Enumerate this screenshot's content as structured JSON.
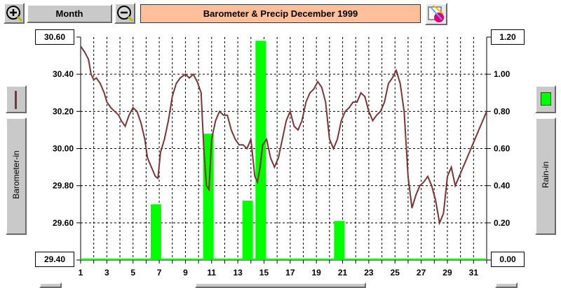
{
  "toolbar": {
    "zoom_in_label": "+",
    "zoom_out_label": "−",
    "period_label": "Month",
    "title": "Barometer & Precip   December 1999"
  },
  "left_panel": {
    "label": "Barometer-in",
    "swatch_color": "#7b3535"
  },
  "right_panel": {
    "label": "Rain-in",
    "swatch_color": "#00ff00"
  },
  "chart_data": {
    "type": "line",
    "title": "Barometer & Precip   December 1999",
    "x_ticks": [
      "1",
      "3",
      "5",
      "7",
      "9",
      "11",
      "13",
      "15",
      "17",
      "19",
      "21",
      "23",
      "25",
      "27",
      "29",
      "31"
    ],
    "xlim": [
      1,
      32
    ],
    "y_left": {
      "label": "Barometer-in",
      "ticks": [
        "30.60",
        "30.40",
        "30.20",
        "30.00",
        "29.80",
        "29.60",
        "29.40"
      ],
      "ylim": [
        29.4,
        30.6
      ]
    },
    "y_right": {
      "label": "Rain-in",
      "ticks": [
        "1.20",
        "1.00",
        "0.80",
        "0.60",
        "0.40",
        "0.20",
        "0.00"
      ],
      "ylim": [
        0,
        1.2
      ]
    },
    "grid": true,
    "series": [
      {
        "kind": "line",
        "axis": "left",
        "color": "#7b3535",
        "x": [
          1.0,
          1.3,
          1.6,
          1.8,
          2.0,
          2.2,
          2.5,
          2.8,
          3.0,
          3.3,
          3.6,
          3.9,
          4.1,
          4.4,
          4.7,
          5.0,
          5.3,
          5.6,
          5.9,
          6.1,
          6.4,
          6.7,
          6.9,
          7.1,
          7.4,
          7.7,
          8.0,
          8.3,
          8.6,
          9.0,
          9.3,
          9.6,
          9.9,
          10.2,
          10.4,
          10.6,
          10.8,
          11.0,
          11.3,
          11.6,
          11.9,
          12.2,
          12.5,
          12.8,
          13.1,
          13.4,
          13.7,
          14.0,
          14.3,
          14.5,
          14.7,
          14.9,
          15.2,
          15.5,
          15.8,
          16.1,
          16.4,
          16.7,
          17.0,
          17.3,
          17.6,
          17.9,
          18.2,
          18.5,
          18.8,
          19.1,
          19.4,
          19.7,
          20.0,
          20.3,
          20.6,
          20.9,
          21.2,
          21.5,
          21.8,
          22.1,
          22.4,
          22.7,
          23.0,
          23.3,
          23.6,
          23.9,
          24.2,
          24.5,
          24.8,
          25.1,
          25.4,
          25.7,
          26.0,
          26.3,
          26.6,
          26.9,
          27.2,
          27.5,
          27.8,
          28.1,
          28.4,
          28.7,
          29.0,
          29.3,
          29.6,
          29.9,
          30.2,
          30.5,
          30.8,
          31.1,
          31.4,
          31.7,
          32.0
        ],
        "y": [
          30.55,
          30.52,
          30.48,
          30.4,
          30.37,
          30.38,
          30.35,
          30.3,
          30.25,
          30.22,
          30.2,
          30.18,
          30.15,
          30.12,
          30.18,
          30.22,
          30.2,
          30.14,
          30.05,
          29.95,
          29.9,
          29.85,
          29.84,
          29.98,
          30.05,
          30.15,
          30.28,
          30.35,
          30.38,
          30.4,
          30.38,
          30.4,
          30.36,
          30.3,
          30.0,
          29.8,
          29.78,
          30.05,
          30.15,
          30.2,
          30.18,
          30.18,
          30.1,
          30.05,
          30.02,
          30.02,
          30.0,
          30.05,
          29.85,
          29.82,
          29.9,
          30.02,
          30.05,
          29.95,
          29.9,
          29.95,
          30.05,
          30.15,
          30.2,
          30.12,
          30.1,
          30.15,
          30.25,
          30.3,
          30.32,
          30.36,
          30.33,
          30.25,
          30.05,
          30.0,
          30.05,
          30.15,
          30.2,
          30.22,
          30.25,
          30.25,
          30.3,
          30.28,
          30.2,
          30.15,
          30.18,
          30.2,
          30.25,
          30.35,
          30.38,
          30.42,
          30.35,
          30.2,
          29.85,
          29.68,
          29.75,
          29.8,
          29.82,
          29.85,
          29.8,
          29.72,
          29.6,
          29.65,
          29.85,
          29.9,
          29.8,
          29.85,
          29.9,
          29.95,
          30.0,
          30.05,
          30.1,
          30.15,
          30.2
        ]
      },
      {
        "kind": "bar",
        "axis": "right",
        "color": "#00ff00",
        "x": [
          6.75,
          10.75,
          13.75,
          14.75,
          20.75
        ],
        "values": [
          0.3,
          0.68,
          0.32,
          1.18,
          0.21
        ]
      }
    ]
  }
}
